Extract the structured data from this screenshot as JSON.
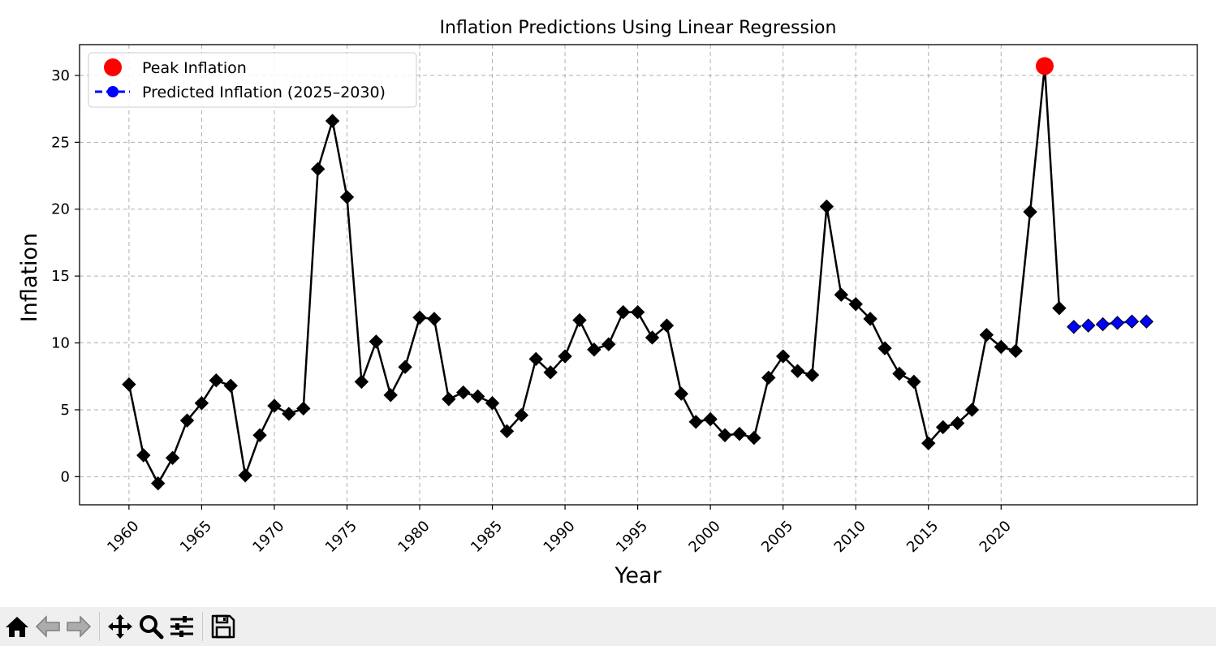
{
  "chart_data": {
    "type": "line",
    "title": "Inflation Predictions Using Linear Regression",
    "xlabel": "Year",
    "ylabel": "Inflation",
    "xlim": [
      1956.6,
      2033.5
    ],
    "ylim": [
      -2.1,
      32.3
    ],
    "xticks": [
      1960,
      1965,
      1970,
      1975,
      1980,
      1985,
      1990,
      1995,
      2000,
      2005,
      2010,
      2015,
      2020
    ],
    "yticks": [
      0,
      5,
      10,
      15,
      20,
      25,
      30
    ],
    "grid": true,
    "legend_position": "top-left",
    "series": [
      {
        "style": "black-line-diamond",
        "x": [
          1960,
          1961,
          1962,
          1963,
          1964,
          1965,
          1966,
          1967,
          1968,
          1969,
          1970,
          1971,
          1972,
          1973,
          1974,
          1975,
          1976,
          1977,
          1978,
          1979,
          1980,
          1981,
          1982,
          1983,
          1984,
          1985,
          1986,
          1987,
          1988,
          1989,
          1990,
          1991,
          1992,
          1993,
          1994,
          1995,
          1996,
          1997,
          1998,
          1999,
          2000,
          2001,
          2002,
          2003,
          2004,
          2005,
          2006,
          2007,
          2008,
          2009,
          2010,
          2011,
          2012,
          2013,
          2014,
          2015,
          2016,
          2017,
          2018,
          2019,
          2020,
          2021,
          2022,
          2023,
          2024
        ],
        "values": [
          6.9,
          1.6,
          -0.5,
          1.4,
          4.2,
          5.5,
          7.2,
          6.8,
          0.1,
          3.1,
          5.3,
          4.7,
          5.1,
          23.0,
          26.6,
          20.9,
          7.1,
          10.1,
          6.1,
          8.2,
          11.9,
          11.8,
          5.8,
          6.3,
          6.0,
          5.5,
          3.4,
          4.6,
          8.8,
          7.8,
          9.0,
          11.7,
          9.5,
          9.9,
          12.3,
          12.3,
          10.4,
          11.3,
          6.2,
          4.1,
          4.3,
          3.1,
          3.2,
          2.9,
          7.4,
          9.0,
          7.9,
          7.6,
          20.2,
          13.6,
          12.9,
          11.8,
          9.6,
          7.7,
          7.1,
          2.5,
          3.7,
          4.0,
          5.0,
          10.6,
          9.7,
          9.4,
          19.8,
          30.7,
          12.6
        ]
      },
      {
        "name": "Predicted Inflation (2025–2030)",
        "color": "#0000ff",
        "style": "blue-dashed-diamond",
        "x": [
          2025,
          2026,
          2027,
          2028,
          2029,
          2030
        ],
        "values": [
          11.2,
          11.3,
          11.4,
          11.5,
          11.6,
          11.6
        ]
      }
    ],
    "peak": {
      "name": "Peak Inflation",
      "x": 2023,
      "value": 30.7,
      "color": "#ff0000"
    },
    "legend": [
      {
        "label": "Peak Inflation",
        "marker": "red-circle"
      },
      {
        "label": "Predicted Inflation (2025–2030)",
        "marker": "blue-dashed-circle"
      }
    ]
  },
  "toolbar": {
    "buttons": [
      {
        "icon": "home-icon",
        "enabled": true
      },
      {
        "icon": "back-arrow-icon",
        "enabled": false
      },
      {
        "icon": "forward-arrow-icon",
        "enabled": false
      },
      {
        "icon": "pan-icon",
        "enabled": true
      },
      {
        "icon": "zoom-icon",
        "enabled": true
      },
      {
        "icon": "configure-subplots-icon",
        "enabled": true
      },
      {
        "icon": "save-icon",
        "enabled": true
      }
    ]
  }
}
